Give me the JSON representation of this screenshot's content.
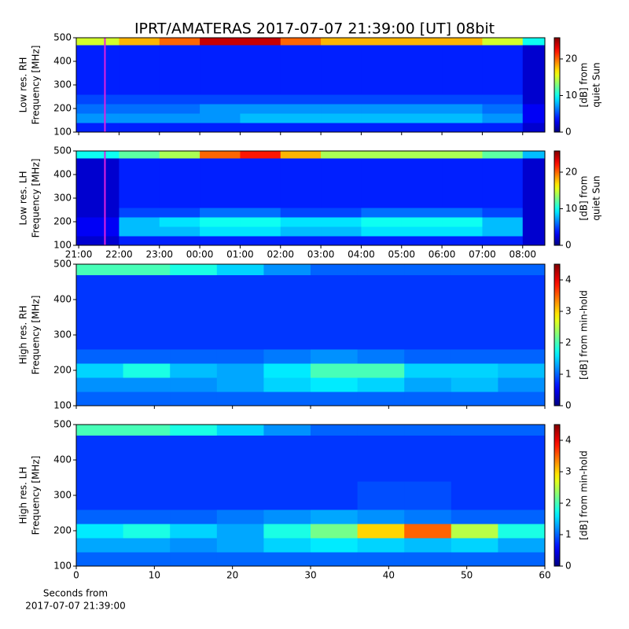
{
  "chart_data": [
    {
      "type": "heatmap",
      "title": "IPRT/AMATERAS 2017-07-07 21:39:00 [UT]   08bit",
      "ylabel": [
        "Low res. RH",
        "Frequency [MHz]"
      ],
      "colorbar_label": [
        "[dB] from",
        "quiet Sun"
      ],
      "colormap": "jet",
      "xlim": [
        20.94,
        32.55
      ],
      "xticks": [
        21,
        22,
        23,
        24,
        25,
        26,
        27,
        28,
        29,
        30,
        31,
        32
      ],
      "show_xticklabels": false,
      "ylim": [
        100,
        500
      ],
      "yticks": [
        100,
        200,
        300,
        400,
        500
      ],
      "clim": [
        0,
        25.8
      ],
      "cticks": [
        0,
        10,
        20
      ],
      "marker_x": 21.65,
      "marker_color": "#e020e0",
      "xbins": [
        20.94,
        22,
        23,
        24,
        25,
        26,
        27,
        28,
        29,
        30,
        31,
        32,
        32.55
      ],
      "ybins": [
        100,
        140,
        180,
        220,
        260,
        340,
        420,
        470,
        500
      ],
      "values": [
        [
          4,
          4,
          4,
          4,
          4,
          4,
          4,
          4,
          4,
          4,
          4,
          2
        ],
        [
          7,
          7,
          7,
          7,
          8,
          8,
          8,
          8,
          8,
          8,
          7,
          3
        ],
        [
          6,
          6,
          6,
          7,
          7,
          7,
          7,
          7,
          7,
          7,
          6,
          3
        ],
        [
          5,
          5,
          5,
          5,
          5,
          5,
          5,
          5,
          5,
          5,
          5,
          2
        ],
        [
          4,
          4,
          4,
          4,
          4,
          4,
          4,
          4,
          4,
          4,
          4,
          2
        ],
        [
          4,
          4,
          4,
          4,
          4,
          4,
          4,
          4,
          4,
          4,
          4,
          2
        ],
        [
          4,
          4,
          4,
          4,
          4,
          4,
          4,
          4,
          4,
          4,
          4,
          2
        ],
        [
          15,
          18,
          20,
          24,
          24,
          20,
          18,
          18,
          18,
          18,
          15,
          10
        ]
      ]
    },
    {
      "type": "heatmap",
      "ylabel": [
        "Low res. LH",
        "Frequency [MHz]"
      ],
      "colorbar_label": [
        "[dB] from",
        "quiet Sun"
      ],
      "colormap": "jet",
      "xlim": [
        20.94,
        32.55
      ],
      "xticks": [
        {
          "value": 21,
          "label": "21:00"
        },
        {
          "value": 22,
          "label": "22:00"
        },
        {
          "value": 23,
          "label": "23:00"
        },
        {
          "value": 24,
          "label": "00:00"
        },
        {
          "value": 25,
          "label": "01:00"
        },
        {
          "value": 26,
          "label": "02:00"
        },
        {
          "value": 27,
          "label": "03:00"
        },
        {
          "value": 28,
          "label": "04:00"
        },
        {
          "value": 29,
          "label": "05:00"
        },
        {
          "value": 30,
          "label": "06:00"
        },
        {
          "value": 31,
          "label": "07:00"
        },
        {
          "value": 32,
          "label": "08:00"
        }
      ],
      "show_xticklabels": true,
      "ylim": [
        100,
        500
      ],
      "yticks": [
        100,
        200,
        300,
        400,
        500
      ],
      "clim": [
        0,
        25.8
      ],
      "cticks": [
        0,
        10,
        20
      ],
      "marker_x": 21.65,
      "marker_color": "#e020e0",
      "xbins": [
        20.94,
        22,
        23,
        24,
        25,
        26,
        27,
        28,
        29,
        30,
        31,
        32,
        32.55
      ],
      "ybins": [
        100,
        140,
        180,
        220,
        260,
        340,
        420,
        470,
        500
      ],
      "values": [
        [
          2,
          4,
          4,
          4,
          4,
          4,
          4,
          4,
          4,
          4,
          4,
          2
        ],
        [
          3,
          8,
          8,
          9,
          9,
          8,
          8,
          9,
          9,
          9,
          8,
          2
        ],
        [
          3,
          8,
          9,
          10,
          10,
          9,
          9,
          10,
          10,
          10,
          8,
          2
        ],
        [
          2,
          5,
          5,
          6,
          6,
          5,
          5,
          6,
          6,
          6,
          5,
          2
        ],
        [
          2,
          4,
          4,
          4,
          4,
          4,
          4,
          4,
          4,
          4,
          4,
          2
        ],
        [
          2,
          4,
          4,
          4,
          4,
          4,
          4,
          4,
          4,
          4,
          4,
          2
        ],
        [
          2,
          4,
          4,
          4,
          4,
          4,
          4,
          4,
          4,
          4,
          4,
          2
        ],
        [
          10,
          12,
          14,
          20,
          22,
          18,
          14,
          14,
          14,
          14,
          12,
          8
        ]
      ]
    },
    {
      "type": "heatmap",
      "ylabel": [
        "High res. RH",
        "Frequency [MHz]"
      ],
      "colorbar_label": [
        "[dB] from min-hold"
      ],
      "colormap": "jet",
      "xlim": [
        0,
        60
      ],
      "xticks": [
        0,
        10,
        20,
        30,
        40,
        50,
        60
      ],
      "show_xticklabels": false,
      "ylim": [
        100,
        500
      ],
      "yticks": [
        100,
        200,
        300,
        400,
        500
      ],
      "clim": [
        0,
        4.5
      ],
      "cticks": [
        0,
        1,
        2,
        3,
        4
      ],
      "xbins": [
        0,
        6,
        12,
        18,
        24,
        30,
        36,
        42,
        48,
        54,
        60
      ],
      "ybins": [
        100,
        140,
        180,
        220,
        260,
        340,
        420,
        470,
        500
      ],
      "values": [
        [
          1,
          1,
          1,
          1,
          1,
          1,
          1,
          1,
          1,
          1
        ],
        [
          1.2,
          1.2,
          1.2,
          1.3,
          1.5,
          1.6,
          1.5,
          1.3,
          1.4,
          1.2
        ],
        [
          1.5,
          1.8,
          1.4,
          1.3,
          1.6,
          2,
          2,
          1.5,
          1.5,
          1.4
        ],
        [
          1,
          1,
          1,
          1,
          1.1,
          1.2,
          1.1,
          1,
          1,
          1
        ],
        [
          0.8,
          0.8,
          0.8,
          0.8,
          0.8,
          0.8,
          0.8,
          0.8,
          0.8,
          0.8
        ],
        [
          0.8,
          0.8,
          0.8,
          0.8,
          0.8,
          0.8,
          0.8,
          0.8,
          0.8,
          0.8
        ],
        [
          0.8,
          0.8,
          0.8,
          0.8,
          0.8,
          0.8,
          0.8,
          0.8,
          0.8,
          0.8
        ],
        [
          2,
          2,
          1.8,
          1.5,
          1.2,
          1,
          1,
          1,
          1,
          1
        ]
      ]
    },
    {
      "type": "heatmap",
      "ylabel": [
        "High res. LH",
        "Frequency [MHz]"
      ],
      "colorbar_label": [
        "[dB] from min-hold"
      ],
      "colormap": "jet",
      "xlabel": [
        "Seconds from",
        "2017-07-07 21:39:00"
      ],
      "xlim": [
        0,
        60
      ],
      "xticks": [
        0,
        10,
        20,
        30,
        40,
        50,
        60
      ],
      "show_xticklabels": true,
      "ylim": [
        100,
        500
      ],
      "yticks": [
        100,
        200,
        300,
        400,
        500
      ],
      "clim": [
        0,
        4.5
      ],
      "cticks": [
        0,
        1,
        2,
        3,
        4
      ],
      "xbins": [
        0,
        6,
        12,
        18,
        24,
        30,
        36,
        42,
        48,
        54,
        60
      ],
      "ybins": [
        100,
        140,
        180,
        220,
        260,
        340,
        420,
        470,
        500
      ],
      "values": [
        [
          1,
          1,
          1,
          1,
          1,
          1,
          1,
          1,
          1,
          1
        ],
        [
          1.3,
          1.3,
          1.2,
          1.3,
          1.5,
          1.6,
          1.5,
          1.4,
          1.5,
          1.3
        ],
        [
          1.6,
          1.8,
          1.5,
          1.3,
          1.8,
          2.2,
          3,
          3.5,
          2.5,
          1.8
        ],
        [
          1,
          1,
          1,
          1.1,
          1.2,
          1.3,
          1.2,
          1.1,
          1,
          1
        ],
        [
          0.8,
          0.8,
          0.8,
          0.8,
          0.8,
          0.8,
          0.9,
          0.9,
          0.8,
          0.8
        ],
        [
          0.8,
          0.8,
          0.8,
          0.8,
          0.8,
          0.8,
          0.8,
          0.8,
          0.8,
          0.8
        ],
        [
          0.8,
          0.8,
          0.8,
          0.8,
          0.8,
          0.8,
          0.8,
          0.8,
          0.8,
          0.8
        ],
        [
          2,
          2,
          1.8,
          1.5,
          1.2,
          1,
          1,
          1,
          1,
          1
        ]
      ]
    }
  ]
}
